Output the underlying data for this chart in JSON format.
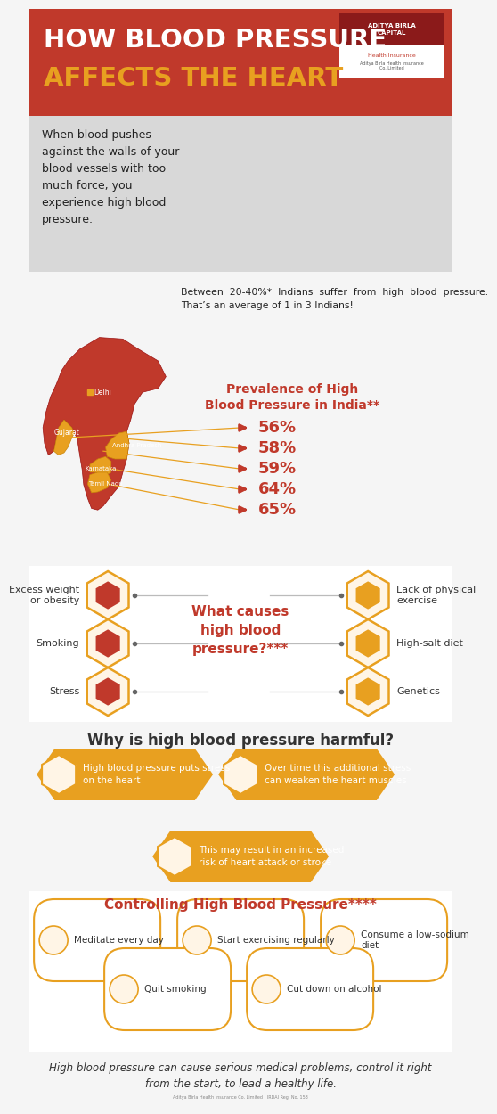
{
  "title_line1": "HOW BLOOD PRESSURE",
  "title_line2": "AFFECTS THE HEART",
  "title_bg": "#c0392b",
  "title_text_color1": "#ffffff",
  "title_text_color2": "#e8a020",
  "intro_bg": "#d8d8d8",
  "intro_text": "When blood pushes\nagainst the walls of your\nblood vessels with too\nmuch force, you\nexperience high blood\npressure.",
  "section2_text": "Between  20-40%*  Indians  suffer  from  high  blood  pressure.\nThat’s an average of 1 in 3 Indians!",
  "prevalence_title": "Prevalence of High\nBlood Pressure in India**",
  "prevalence_values": [
    "56%",
    "58%",
    "59%",
    "64%",
    "65%"
  ],
  "causes_title": "What causes\nhigh blood\npressure?***",
  "causes_left": [
    "Excess weight\nor obesity",
    "Smoking",
    "Stress"
  ],
  "causes_right": [
    "Lack of physical\nexercise",
    "High-salt diet",
    "Genetics"
  ],
  "harmful_title": "Why is high blood pressure harmful?",
  "harmful_items": [
    "High blood pressure puts stress\non the heart",
    "Over time this additional stress\ncan weaken the heart muscles",
    "This may result in an increased\nrisk of heart attack or stroke"
  ],
  "control_title": "Controlling High Blood Pressure****",
  "control_items": [
    "Meditate every day",
    "Start exercising regularly",
    "Consume a low-sodium\ndiet",
    "Quit smoking",
    "Cut down on alcohol"
  ],
  "footer_text": "High blood pressure can cause serious medical problems, control it right\nfrom the start, to lead a healthy life.",
  "red": "#c0392b",
  "orange": "#e8a020",
  "dark_red": "#8b1a1a",
  "white": "#ffffff",
  "light_gray": "#e8e8e8",
  "section_bg": "#f5f5f5",
  "section_white": "#ffffff"
}
